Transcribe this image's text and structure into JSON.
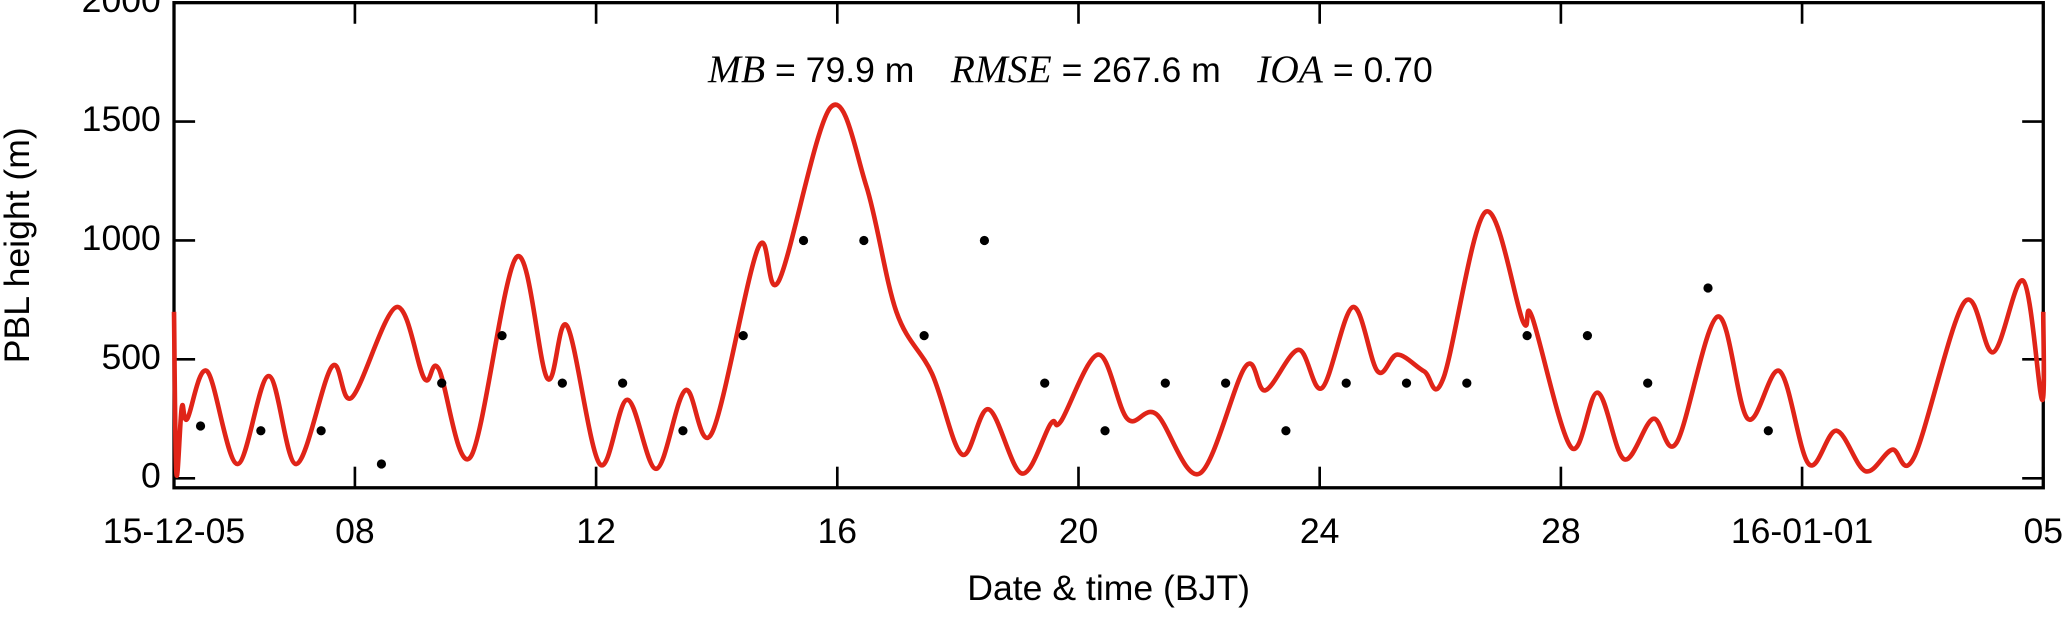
{
  "chart_data": {
    "type": "line",
    "xlabel": "Date & time (BJT)",
    "ylabel": "PBL height (m)",
    "annotation": [
      {
        "name": "MB",
        "text": "=  79.9 m"
      },
      {
        "name": "RMSE",
        "text": "= 267.6 m"
      },
      {
        "name": "IOA",
        "text": "= 0.70"
      }
    ],
    "xlim": [
      0,
      31
    ],
    "xticks": [
      {
        "value": 0,
        "label": "15-12-05"
      },
      {
        "value": 3,
        "label": "08"
      },
      {
        "value": 7,
        "label": "12"
      },
      {
        "value": 11,
        "label": "16"
      },
      {
        "value": 15,
        "label": "20"
      },
      {
        "value": 19,
        "label": "24"
      },
      {
        "value": 23,
        "label": "28"
      },
      {
        "value": 27,
        "label": "16-01-01"
      },
      {
        "value": 31,
        "label": "05"
      }
    ],
    "ylim": [
      -40,
      2000
    ],
    "yticks": [
      0,
      500,
      1000,
      1500,
      2000
    ],
    "series": [
      {
        "style": "line",
        "color": "#e02418",
        "x": [
          0,
          0.04,
          0.13,
          0.22,
          0.55,
          1.05,
          1.57,
          2.03,
          2.62,
          2.95,
          3.69,
          4.15,
          4.39,
          4.92,
          5.68,
          6.19,
          6.52,
          7.06,
          7.52,
          8.0,
          8.48,
          8.92,
          9.69,
          10.03,
          10.89,
          11.48,
          11.98,
          12.57,
          13.07,
          13.51,
          14.06,
          14.54,
          14.71,
          15.33,
          15.81,
          16.29,
          17.01,
          17.77,
          18.1,
          18.65,
          19.04,
          19.55,
          19.96,
          20.29,
          20.73,
          21.05,
          21.75,
          22.37,
          22.52,
          23.17,
          23.61,
          24.05,
          24.53,
          24.92,
          25.6,
          26.1,
          26.63,
          27.11,
          27.57,
          28.05,
          28.49,
          28.86,
          29.69,
          30.17,
          30.67,
          30.98,
          31.0
        ],
        "values": [
          700,
          20,
          300,
          250,
          450,
          60,
          430,
          60,
          470,
          340,
          720,
          420,
          460,
          90,
          930,
          420,
          640,
          60,
          330,
          40,
          370,
          190,
          970,
          830,
          1560,
          1230,
          700,
          440,
          100,
          290,
          20,
          230,
          240,
          520,
          250,
          270,
          20,
          470,
          370,
          540,
          380,
          720,
          450,
          520,
          450,
          420,
          1120,
          660,
          680,
          130,
          360,
          80,
          250,
          150,
          680,
          250,
          450,
          60,
          200,
          30,
          120,
          90,
          740,
          530,
          830,
          330,
          700
        ]
      },
      {
        "style": "dot",
        "color": "#000000",
        "x": [
          0.44,
          1.44,
          2.44,
          3.44,
          4.44,
          5.44,
          6.44,
          7.44,
          8.44,
          9.44,
          10.44,
          11.44,
          12.44,
          13.44,
          14.44,
          15.44,
          16.44,
          17.44,
          18.44,
          19.44,
          20.44,
          21.44,
          22.44,
          23.44,
          24.44,
          25.44,
          26.44
        ],
        "values": [
          220,
          200,
          200,
          60,
          400,
          600,
          400,
          400,
          200,
          600,
          1000,
          1000,
          600,
          1000,
          400,
          200,
          400,
          400,
          200,
          400,
          400,
          400,
          600,
          600,
          400,
          800,
          200
        ]
      }
    ]
  }
}
